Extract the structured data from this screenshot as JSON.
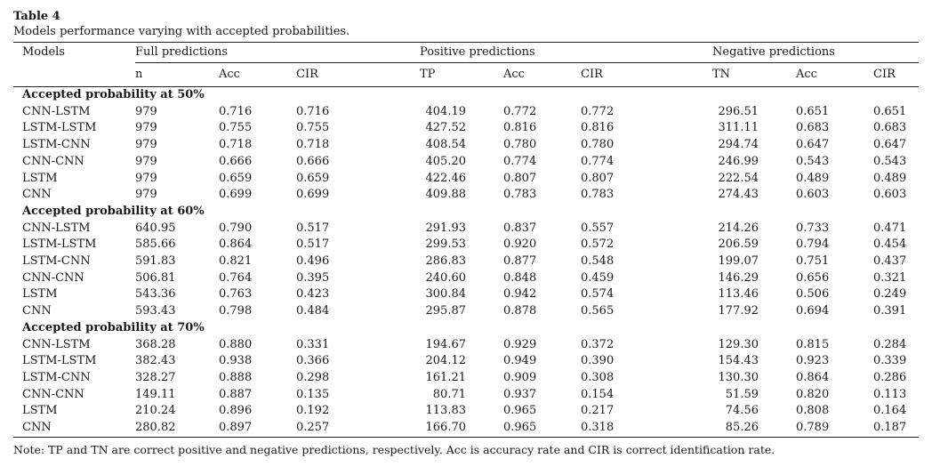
{
  "table_number": "Table 4",
  "caption": "Models performance varying with accepted probabilities.",
  "headers": {
    "models": "Models",
    "groups": [
      "Full predictions",
      "Positive predictions",
      "Negative predictions"
    ],
    "sub": [
      "n",
      "Acc",
      "CIR",
      "TP",
      "Acc",
      "CIR",
      "TN",
      "Acc",
      "CIR"
    ]
  },
  "sections": [
    {
      "title": "Accepted probability at 50%",
      "rows": [
        [
          "CNN-LSTM",
          "979",
          "0.716",
          "0.716",
          "404.19",
          "0.772",
          "0.772",
          "296.51",
          "0.651",
          "0.651"
        ],
        [
          "LSTM-LSTM",
          "979",
          "0.755",
          "0.755",
          "427.52",
          "0.816",
          "0.816",
          "311.11",
          "0.683",
          "0.683"
        ],
        [
          "LSTM-CNN",
          "979",
          "0.718",
          "0.718",
          "408.54",
          "0.780",
          "0.780",
          "294.74",
          "0.647",
          "0.647"
        ],
        [
          "CNN-CNN",
          "979",
          "0.666",
          "0.666",
          "405.20",
          "0.774",
          "0.774",
          "246.99",
          "0.543",
          "0.543"
        ],
        [
          "LSTM",
          "979",
          "0.659",
          "0.659",
          "422.46",
          "0.807",
          "0.807",
          "222.54",
          "0.489",
          "0.489"
        ],
        [
          "CNN",
          "979",
          "0.699",
          "0.699",
          "409.88",
          "0.783",
          "0.783",
          "274.43",
          "0.603",
          "0.603"
        ]
      ]
    },
    {
      "title": "Accepted probability at 60%",
      "rows": [
        [
          "CNN-LSTM",
          "640.95",
          "0.790",
          "0.517",
          "291.93",
          "0.837",
          "0.557",
          "214.26",
          "0.733",
          "0.471"
        ],
        [
          "LSTM-LSTM",
          "585.66",
          "0.864",
          "0.517",
          "299.53",
          "0.920",
          "0.572",
          "206.59",
          "0.794",
          "0.454"
        ],
        [
          "LSTM-CNN",
          "591.83",
          "0.821",
          "0.496",
          "286.83",
          "0.877",
          "0.548",
          "199.07",
          "0.751",
          "0.437"
        ],
        [
          "CNN-CNN",
          "506.81",
          "0.764",
          "0.395",
          "240.60",
          "0.848",
          "0.459",
          "146.29",
          "0.656",
          "0.321"
        ],
        [
          "LSTM",
          "543.36",
          "0.763",
          "0.423",
          "300.84",
          "0.942",
          "0.574",
          "113.46",
          "0.506",
          "0.249"
        ],
        [
          "CNN",
          "593.43",
          "0.798",
          "0.484",
          "295.87",
          "0.878",
          "0.565",
          "177.92",
          "0.694",
          "0.391"
        ]
      ]
    },
    {
      "title": "Accepted probability at 70%",
      "rows": [
        [
          "CNN-LSTM",
          "368.28",
          "0.880",
          "0.331",
          "194.67",
          "0.929",
          "0.372",
          "129.30",
          "0.815",
          "0.284"
        ],
        [
          "LSTM-LSTM",
          "382.43",
          "0.938",
          "0.366",
          "204.12",
          "0.949",
          "0.390",
          "154.43",
          "0.923",
          "0.339"
        ],
        [
          "LSTM-CNN",
          "328.27",
          "0.888",
          "0.298",
          "161.21",
          "0.909",
          "0.308",
          "130.30",
          "0.864",
          "0.286"
        ],
        [
          "CNN-CNN",
          "149.11",
          "0.887",
          "0.135",
          "80.71",
          "0.937",
          "0.154",
          "51.59",
          "0.820",
          "0.113"
        ],
        [
          "LSTM",
          "210.24",
          "0.896",
          "0.192",
          "113.83",
          "0.965",
          "0.217",
          "74.56",
          "0.808",
          "0.164"
        ],
        [
          "CNN",
          "280.82",
          "0.897",
          "0.257",
          "166.70",
          "0.965",
          "0.318",
          "85.26",
          "0.789",
          "0.187"
        ]
      ]
    }
  ],
  "note": "Note: TP and TN are correct positive and negative predictions, respectively. Acc is accuracy rate and CIR is correct identification rate."
}
